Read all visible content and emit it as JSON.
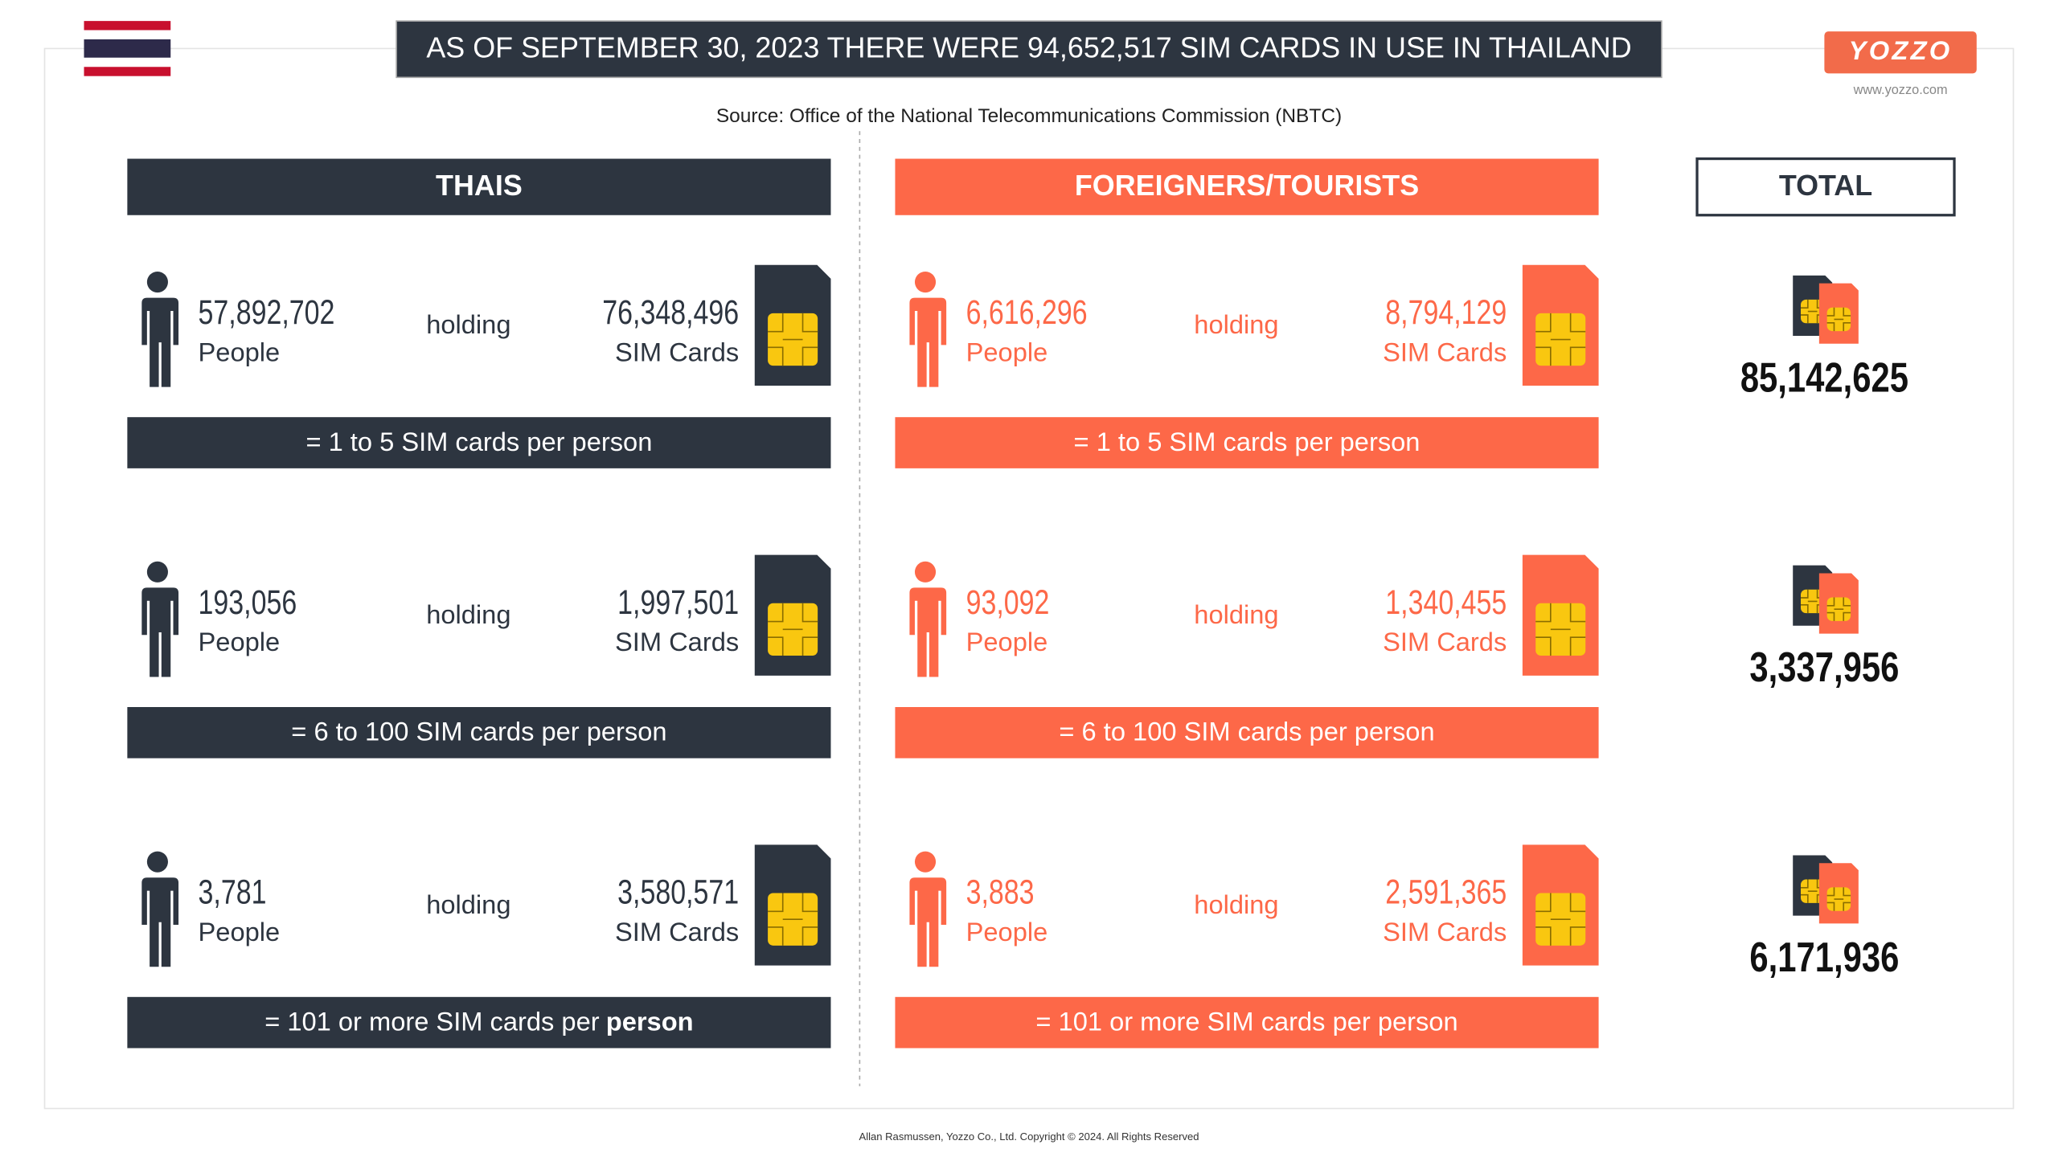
{
  "header": {
    "title": "AS OF SEPTEMBER 30, 2023 THERE WERE 94,652,517 SIM CARDS IN USE IN THAILAND",
    "source": "Source: Office of the National Telecommunications Commission (NBTC)",
    "logo": "YOZZO",
    "url": "www.yozzo.com"
  },
  "columns": {
    "thais": "THAIS",
    "foreigners": "FOREIGNERS/TOURISTS",
    "total": "TOTAL"
  },
  "rows": [
    {
      "thais": {
        "people": "57,892,702",
        "people_label": "People",
        "holding": "holding",
        "sims": "76,348,496",
        "sims_label": "SIM Cards",
        "rule": "= 1 to 5 SIM cards per person"
      },
      "foreigners": {
        "people": "6,616,296",
        "people_label": "People",
        "holding": "holding",
        "sims": "8,794,129",
        "sims_label": "SIM Cards",
        "rule": "= 1 to 5 SIM cards per person"
      },
      "total": "85,142,625"
    },
    {
      "thais": {
        "people": "193,056",
        "people_label": "People",
        "holding": "holding",
        "sims": "1,997,501",
        "sims_label": "SIM Cards",
        "rule": "= 6 to 100 SIM cards per person"
      },
      "foreigners": {
        "people": "93,092",
        "people_label": "People",
        "holding": "holding",
        "sims": "1,340,455",
        "sims_label": "SIM Cards",
        "rule": "= 6 to 100 SIM cards per person"
      },
      "total": "3,337,956"
    },
    {
      "thais": {
        "people": "3,781",
        "people_label": "People",
        "holding": "holding",
        "sims": "3,580,571",
        "sims_label": "SIM Cards",
        "rule": "= 101 or more SIM cards per",
        "rule_bold": "person"
      },
      "foreigners": {
        "people": "3,883",
        "people_label": "People",
        "holding": "holding",
        "sims": "2,591,365",
        "sims_label": "SIM Cards",
        "rule": "= 101 or more SIM cards per person"
      },
      "total": "6,171,936"
    }
  ],
  "footer": "Allan Rasmussen, Yozzo Co., Ltd. Copyright © 2024. All Rights Reserved"
}
